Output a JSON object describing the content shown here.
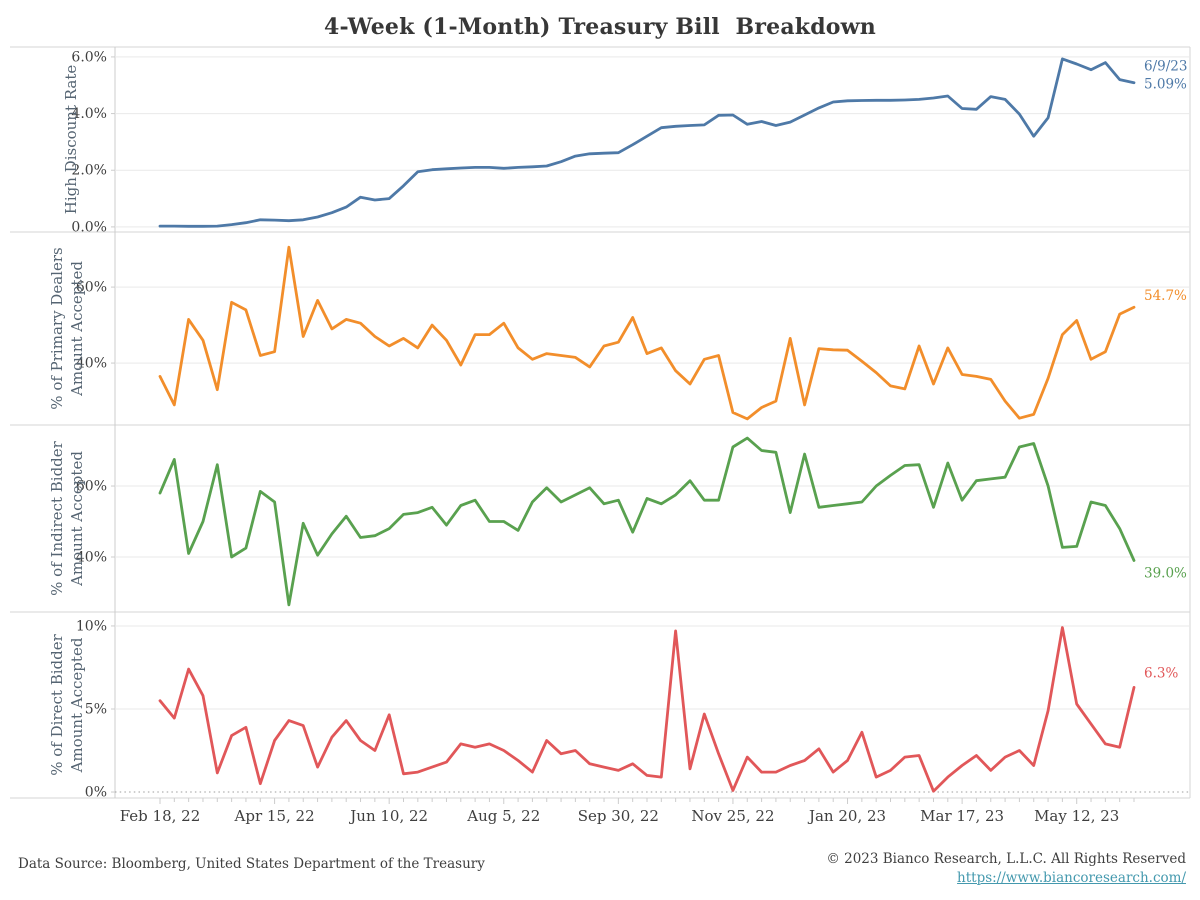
{
  "title": "4-Week (1-Month) Treasury Bill  Breakdown",
  "footer": {
    "source": "Data Source: Bloomberg, United States Department of the Treasury",
    "copyright": "© 2023 Bianco Research, L.L.C. All Rights Reserved",
    "link": "https://www.biancoresearch.com/"
  },
  "colors": {
    "blue": "#4e79a7",
    "orange": "#f28e2b",
    "green": "#59a14f",
    "red": "#e15759",
    "grid": "#e9e9e9",
    "panel_border": "#d6d6d6",
    "axis_line": "#cccccc",
    "zero_dotted": "#9e9e9e",
    "tick_label": "#3f3f3f",
    "axis_label": "#566573",
    "title": "#373737",
    "link": "#4499ae"
  },
  "chart_data": {
    "type": "line",
    "frequency": "weekly",
    "points_per_series": 69,
    "x_range": [
      "Feb 18, 22",
      "Jun 9, 23"
    ],
    "x_tick_labels": [
      "Feb 18, 22",
      "Apr 15, 22",
      "Jun 10, 22",
      "Aug 5, 22",
      "Sep 30, 22",
      "Nov 25, 22",
      "Jan 20, 23",
      "Mar 17, 23",
      "May 12, 23"
    ],
    "x_tick_weeks": [
      0,
      8,
      16,
      24,
      32,
      40,
      48,
      56,
      64
    ],
    "grid": "horizontal-only",
    "legend": "none",
    "panels": [
      {
        "id": "high-discount-rate",
        "ylabel_lines": [
          "High Discount Rate"
        ],
        "color": "#4e79a7",
        "ymin": -0.18,
        "ymax": 6.35,
        "yticks": [
          {
            "v": 0,
            "label": "0.0%"
          },
          {
            "v": 2,
            "label": "2.0%"
          },
          {
            "v": 4,
            "label": "4.0%"
          },
          {
            "v": 6,
            "label": "6.0%"
          }
        ],
        "annotation_lines": [
          "6/9/23",
          "5.09%"
        ],
        "values": [
          0.03,
          0.03,
          0.02,
          0.02,
          0.03,
          0.08,
          0.15,
          0.25,
          0.24,
          0.22,
          0.25,
          0.35,
          0.5,
          0.7,
          1.05,
          0.95,
          1.0,
          1.45,
          1.95,
          2.02,
          2.05,
          2.08,
          2.1,
          2.1,
          2.07,
          2.1,
          2.12,
          2.15,
          2.3,
          2.5,
          2.58,
          2.6,
          2.62,
          2.9,
          3.2,
          3.5,
          3.55,
          3.58,
          3.6,
          3.94,
          3.95,
          3.62,
          3.72,
          3.58,
          3.7,
          3.95,
          4.2,
          4.41,
          4.45,
          4.46,
          4.47,
          4.47,
          4.48,
          4.5,
          4.55,
          4.62,
          4.18,
          4.15,
          4.6,
          4.5,
          3.98,
          3.2,
          3.85,
          5.93,
          5.75,
          5.55,
          5.8,
          5.2,
          5.09
        ]
      },
      {
        "id": "primary-dealers",
        "ylabel_lines": [
          "% of Primary Dealers",
          "Amount Accepted"
        ],
        "color": "#f28e2b",
        "ymin": 23.7,
        "ymax": 74.5,
        "yticks": [
          {
            "v": 40,
            "label": "40%"
          },
          {
            "v": 60,
            "label": "60%"
          }
        ],
        "annotation_lines": [
          "54.7%"
        ],
        "values": [
          36.5,
          29,
          51.5,
          46,
          33,
          56,
          54,
          42,
          43,
          70.5,
          47,
          56.5,
          49,
          51.5,
          50.5,
          47,
          44.5,
          46.5,
          44,
          50,
          46,
          39.5,
          47.5,
          47.5,
          50.5,
          44,
          41,
          42.5,
          42,
          41.5,
          39,
          44.5,
          45.5,
          52,
          42.5,
          44,
          38,
          34.5,
          41,
          42,
          27,
          25.3,
          28.3,
          30,
          46.5,
          29,
          43.8,
          43.5,
          43.4,
          40.5,
          37.5,
          34,
          33.2,
          44.5,
          34.5,
          44,
          37,
          36.5,
          35.7,
          30,
          25.5,
          26.5,
          36,
          47.5,
          51.2,
          41,
          43,
          52.9,
          54.7
        ]
      },
      {
        "id": "indirect-bidder",
        "ylabel_lines": [
          "% of Indirect Bidder",
          "Amount Accepted"
        ],
        "color": "#59a14f",
        "ymin": 24.5,
        "ymax": 77.2,
        "yticks": [
          {
            "v": 40,
            "label": "40%"
          },
          {
            "v": 60,
            "label": "60%"
          }
        ],
        "annotation_lines": [
          "39.0%"
        ],
        "values": [
          58,
          67.5,
          41,
          50,
          66,
          40,
          42.5,
          58.5,
          55.5,
          26.5,
          49.5,
          40.5,
          46.5,
          51.5,
          45.5,
          46,
          48,
          52,
          52.5,
          54,
          49,
          54.5,
          56,
          50,
          50,
          47.5,
          55.5,
          59.5,
          55.5,
          57.5,
          59.5,
          55,
          56,
          47,
          56.5,
          55,
          57.5,
          61.5,
          56,
          56,
          71,
          73.5,
          70,
          69.5,
          52.5,
          69,
          54,
          54.5,
          55,
          55.5,
          60,
          63,
          65.8,
          66,
          54,
          66.5,
          56,
          61.5,
          62,
          62.5,
          71,
          72,
          60,
          42.7,
          43,
          55.5,
          54.5,
          48,
          39
        ]
      },
      {
        "id": "direct-bidder",
        "ylabel_lines": [
          "% of Direct Bidder",
          "Amount Accepted"
        ],
        "color": "#e15759",
        "ymin": -0.36,
        "ymax": 10.84,
        "yticks": [
          {
            "v": 0,
            "label": "0%",
            "dotted": true
          },
          {
            "v": 5,
            "label": "5%"
          },
          {
            "v": 10,
            "label": "10%"
          }
        ],
        "annotation_lines": [
          "6.3%"
        ],
        "values": [
          5.5,
          4.45,
          7.4,
          5.8,
          1.15,
          3.4,
          3.9,
          0.5,
          3.1,
          4.3,
          4.0,
          1.5,
          3.3,
          4.3,
          3.1,
          2.5,
          4.65,
          1.1,
          1.2,
          1.5,
          1.8,
          2.9,
          2.7,
          2.9,
          2.5,
          1.9,
          1.2,
          3.1,
          2.3,
          2.5,
          1.7,
          1.5,
          1.3,
          1.7,
          1.0,
          0.9,
          9.7,
          1.4,
          4.7,
          2.3,
          0.1,
          2.1,
          1.2,
          1.2,
          1.6,
          1.9,
          2.6,
          1.2,
          1.9,
          3.6,
          0.9,
          1.3,
          2.1,
          2.2,
          0.05,
          0.9,
          1.6,
          2.2,
          1.3,
          2.1,
          2.5,
          1.6,
          4.9,
          9.9,
          5.3,
          4.1,
          2.9,
          2.7,
          6.3
        ]
      }
    ]
  }
}
